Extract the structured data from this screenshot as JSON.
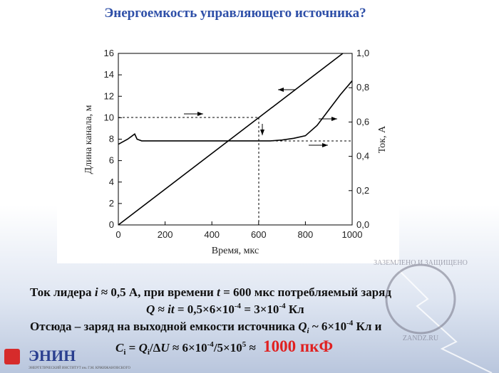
{
  "slide": {
    "title": "Энергоемкость управляющего источника?",
    "lines": [
      [
        "Ток лидера ",
        "i",
        " ≈ 0,5 А, при времени ",
        "t",
        " = 600 мкс потребляемый заряд"
      ],
      [
        "Q",
        " ≈ ",
        "it",
        " = 0,5×6×10",
        "-4",
        " = 3×10",
        "-4",
        " Кл"
      ],
      [
        "Отсюда – заряд на выходной емкости источника ",
        "Q",
        "i",
        " ~ 6×10",
        "-4",
        " Кл и"
      ],
      [
        "C",
        "i",
        " = ",
        "Q",
        "i",
        "/Δ",
        "U",
        " ≈ 6×10",
        "-4",
        "/5×10",
        "5",
        " ≈ ",
        "1000 пкФ"
      ]
    ],
    "logo": "ЭНИН",
    "logo_sub": "ЭНЕРГЕТИЧЕСКИЙ ИНСТИТУТ им. Г.М. КРЖИЖАНОВСКОГО",
    "watermark": "ЗАЗЕМЛЕНО И ЗАЩИЩЕНО",
    "watermark_url": "ZANDZ.RU"
  },
  "chart_data": {
    "type": "line",
    "x_label": "Время, мкс",
    "y_label": "Длина канала, м",
    "y2_label": "Ток, А",
    "xlim": [
      0,
      1000
    ],
    "xticks": [
      0,
      200,
      400,
      600,
      800,
      1000
    ],
    "ylim": [
      0,
      16
    ],
    "yticks": [
      0,
      2,
      4,
      6,
      8,
      10,
      12,
      14,
      16
    ],
    "y2lim": [
      0,
      1
    ],
    "y2ticks": [
      {
        "value": 0,
        "label": "0,0"
      },
      {
        "value": 0.2,
        "label": "0,2"
      },
      {
        "value": 0.4,
        "label": "0,4"
      },
      {
        "value": 0.6,
        "label": "0,6"
      },
      {
        "value": 0.8,
        "label": "0,8"
      },
      {
        "value": 1,
        "label": "1,0"
      }
    ],
    "series": [
      {
        "color": "#000000",
        "x": [
          0,
          600,
          960
        ],
        "values": [
          0,
          10,
          16
        ]
      },
      {
        "color": "#000000",
        "axis": "y2",
        "x": [
          0,
          40,
          60,
          70,
          80,
          100,
          200,
          300,
          400,
          500,
          600,
          650,
          700,
          750,
          800,
          850,
          900,
          950,
          1000
        ],
        "values": [
          0.47,
          0.5,
          0.52,
          0.53,
          0.5,
          0.49,
          0.49,
          0.49,
          0.49,
          0.49,
          0.49,
          0.49,
          0.495,
          0.505,
          0.52,
          0.58,
          0.67,
          0.76,
          0.84
        ]
      }
    ]
  }
}
